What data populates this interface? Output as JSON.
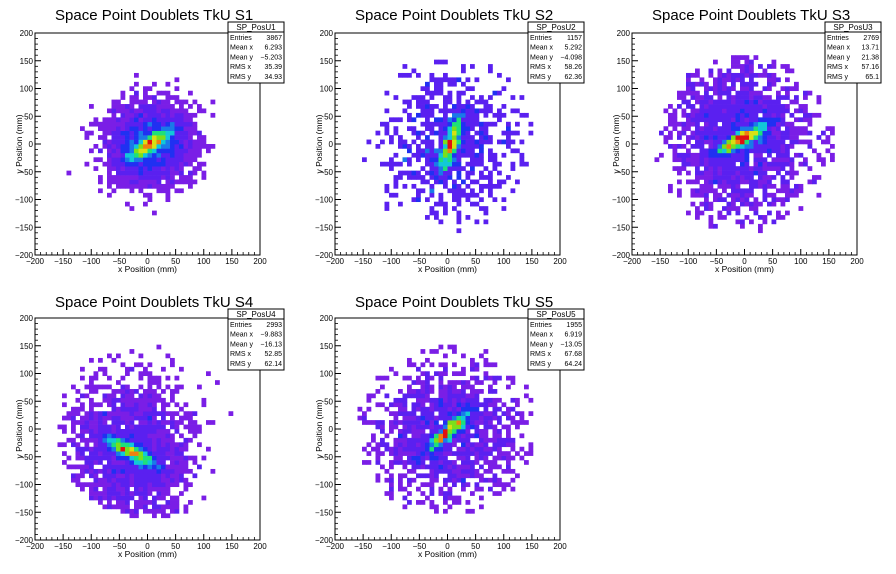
{
  "chart_data": [
    {
      "type": "heatmap",
      "title": "Space Point Doublets TkU S1",
      "xlabel": "x Position (mm)",
      "ylabel": "y Position (mm)",
      "xlim": [
        -200,
        200
      ],
      "ylim": [
        -200,
        200
      ],
      "xticks": [
        "−200",
        "−150",
        "−100",
        "−50",
        "0",
        "50",
        "100",
        "150",
        "200"
      ],
      "yticks": [
        "−200",
        "−150",
        "−100",
        "−50",
        "0",
        "50",
        "100",
        "150",
        "200"
      ],
      "stats": {
        "name": "SP_PosU1",
        "rows": [
          [
            "Entries",
            "3867"
          ],
          [
            "Mean x",
            "6.293"
          ],
          [
            "Mean y",
            "−5.203"
          ],
          [
            "RMS x",
            "35.39"
          ],
          [
            "RMS y",
            "34.93"
          ]
        ]
      },
      "hot_spot": {
        "x": 5,
        "y": 0,
        "angle_deg": 35
      }
    },
    {
      "type": "heatmap",
      "title": "Space Point Doublets TkU S2",
      "xlabel": "x Position (mm)",
      "ylabel": "y Position (mm)",
      "xlim": [
        -200,
        200
      ],
      "ylim": [
        -200,
        200
      ],
      "xticks": [
        "−200",
        "−150",
        "−100",
        "−50",
        "0",
        "50",
        "100",
        "150",
        "200"
      ],
      "yticks": [
        "−200",
        "−150",
        "−100",
        "−50",
        "0",
        "50",
        "100",
        "150",
        "200"
      ],
      "stats": {
        "name": "SP_PosU2",
        "rows": [
          [
            "Entries",
            "1157"
          ],
          [
            "Mean x",
            "5.292"
          ],
          [
            "Mean y",
            "−4.098"
          ],
          [
            "RMS x",
            "58.26"
          ],
          [
            "RMS y",
            "62.36"
          ]
        ]
      },
      "hot_spot": {
        "x": 5,
        "y": 0,
        "angle_deg": 70
      }
    },
    {
      "type": "heatmap",
      "title": "Space Point Doublets TkU S3",
      "xlabel": "x Position (mm)",
      "ylabel": "y Position (mm)",
      "xlim": [
        -200,
        200
      ],
      "ylim": [
        -200,
        200
      ],
      "xticks": [
        "−200",
        "−150",
        "−100",
        "−50",
        "0",
        "50",
        "100",
        "150",
        "200"
      ],
      "yticks": [
        "−200",
        "−150",
        "−100",
        "−50",
        "0",
        "50",
        "100",
        "150",
        "200"
      ],
      "stats": {
        "name": "SP_PosU3",
        "rows": [
          [
            "Entries",
            "2769"
          ],
          [
            "Mean x",
            "13.71"
          ],
          [
            "Mean y",
            "21.38"
          ],
          [
            "RMS x",
            "57.16"
          ],
          [
            "RMS y",
            "65.1"
          ]
        ]
      },
      "hot_spot": {
        "x": -5,
        "y": 10,
        "angle_deg": 30
      }
    },
    {
      "type": "heatmap",
      "title": "Space Point Doublets TkU S4",
      "xlabel": "x Position (mm)",
      "ylabel": "y Position (mm)",
      "xlim": [
        -200,
        200
      ],
      "ylim": [
        -200,
        200
      ],
      "xticks": [
        "−200",
        "−150",
        "−100",
        "−50",
        "0",
        "50",
        "100",
        "150",
        "200"
      ],
      "yticks": [
        "−200",
        "−150",
        "−100",
        "−50",
        "0",
        "50",
        "100",
        "150",
        "200"
      ],
      "stats": {
        "name": "SP_PosU4",
        "rows": [
          [
            "Entries",
            "2993"
          ],
          [
            "Mean x",
            "−9.883"
          ],
          [
            "Mean y",
            "−16.13"
          ],
          [
            "RMS x",
            "52.85"
          ],
          [
            "RMS y",
            "62.14"
          ]
        ]
      },
      "hot_spot": {
        "x": -30,
        "y": -40,
        "angle_deg": -30
      }
    },
    {
      "type": "heatmap",
      "title": "Space Point Doublets TkU S5",
      "xlabel": "x Position (mm)",
      "ylabel": "y Position (mm)",
      "xlim": [
        -200,
        200
      ],
      "ylim": [
        -200,
        200
      ],
      "xticks": [
        "−200",
        "−150",
        "−100",
        "−50",
        "0",
        "50",
        "100",
        "150",
        "200"
      ],
      "yticks": [
        "−200",
        "−150",
        "−100",
        "−50",
        "0",
        "50",
        "100",
        "150",
        "200"
      ],
      "stats": {
        "name": "SP_PosU5",
        "rows": [
          [
            "Entries",
            "1955"
          ],
          [
            "Mean x",
            "6.919"
          ],
          [
            "Mean y",
            "−13.05"
          ],
          [
            "RMS x",
            "67.68"
          ],
          [
            "RMS y",
            "64.24"
          ]
        ]
      },
      "hot_spot": {
        "x": 0,
        "y": -5,
        "angle_deg": 45
      }
    }
  ]
}
